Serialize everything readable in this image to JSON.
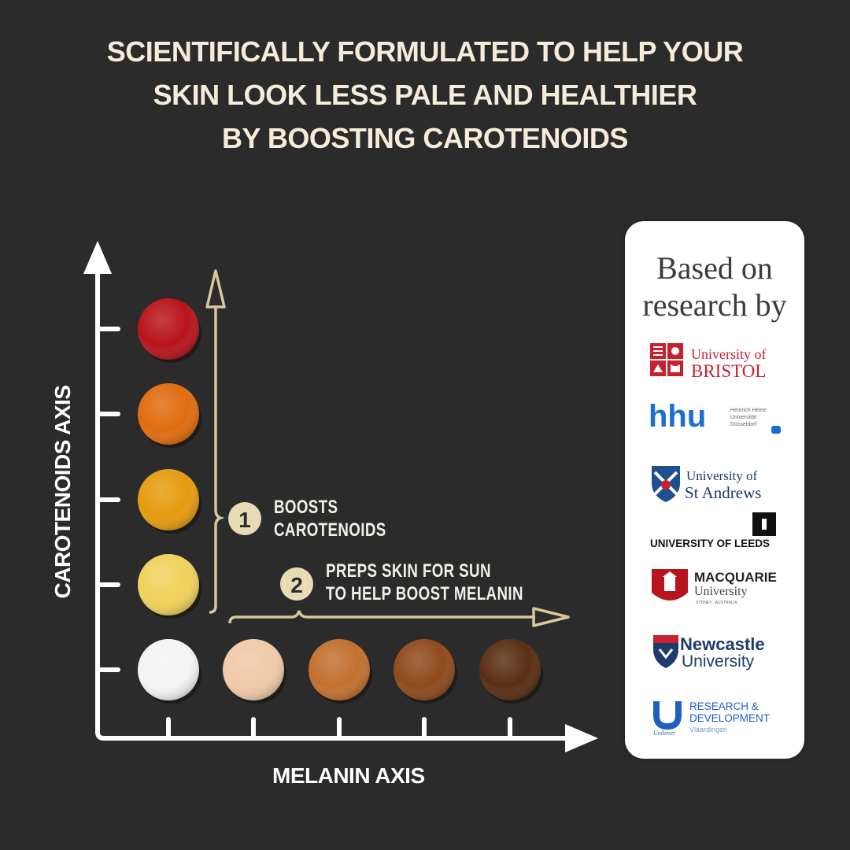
{
  "headline": {
    "line1": "SCIENTIFICALLY FORMULATED TO HELP YOUR",
    "line2": "SKIN LOOK LESS PALE AND HEALTHIER",
    "line3": "BY BOOSTING CAROTENOIDS"
  },
  "axes": {
    "y_label": "CAROTENOIDS AXIS",
    "x_label": "MELANIN AXIS"
  },
  "steps": [
    {
      "number": "1",
      "line1": "BOOSTS",
      "line2": "CAROTENOIDS"
    },
    {
      "number": "2",
      "line1": "PREPS SKIN FOR SUN",
      "line2": "TO HELP BOOST MELANIN"
    }
  ],
  "swatches": {
    "carotenoid_colors": [
      "#f0d15c",
      "#e59b0f",
      "#e06c10",
      "#b8141b"
    ],
    "melanin_colors": [
      "#f4f4f4",
      "#f0c9a8",
      "#c2702f",
      "#8e4a1c",
      "#5a2e13"
    ]
  },
  "colors": {
    "background": "#2b2b2b",
    "accent_gold": "#d8c79a",
    "headline_text": "#f7ecd9"
  },
  "research_panel": {
    "title_line1": "Based on",
    "title_line2": "research by",
    "logos": [
      {
        "name": "University of Bristol",
        "line1": "University of",
        "line2": "BRISTOL"
      },
      {
        "name": "Heinrich Heine Universität Düsseldorf",
        "mark": "hhu",
        "line1": "Heinrich Heine",
        "line2": "Universität",
        "line3": "Düsseldorf"
      },
      {
        "name": "University of St Andrews",
        "line1": "University of",
        "line2": "St Andrews"
      },
      {
        "name": "University of Leeds",
        "line1": "UNIVERSITY OF LEEDS"
      },
      {
        "name": "Macquarie University",
        "line1": "MACQUARIE",
        "line2": "University",
        "line3": "SYDNEY · AUSTRALIA"
      },
      {
        "name": "Newcastle University",
        "line1": "Newcastle",
        "line2": "University"
      },
      {
        "name": "Unilever Research & Development",
        "line1": "RESEARCH &",
        "line2": "DEVELOPMENT",
        "line3": "Vlaardingen",
        "mark": "Unilever"
      }
    ]
  }
}
